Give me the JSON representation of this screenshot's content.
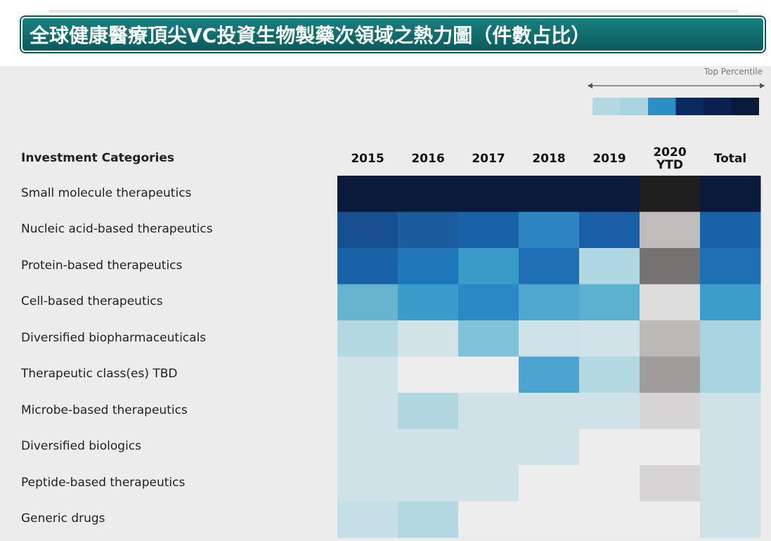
{
  "title": "全球健康醫療頂尖VC投資生物製藥次領域之熱力圖（件數占比）",
  "chart_data": {
    "type": "heatmap",
    "legend_label": "Top Percentile",
    "legend_colors": [
      "#b4d8e2",
      "#a8d4e0",
      "#2a8fc6",
      "#0b2a5e",
      "#0a2050",
      "#0a1a3a"
    ],
    "row_header": "Investment Categories",
    "columns": [
      "2015",
      "2016",
      "2017",
      "2018",
      "2019",
      "2020 YTD",
      "Total"
    ],
    "categories": [
      "Small molecule therapeutics",
      "Nucleic acid-based therapeutics",
      "Protein-based therapeutics",
      "Cell-based therapeutics",
      "Diversified biopharmaceuticals",
      "Therapeutic class(es) TBD",
      "Microbe-based therapeutics",
      "Diversified biologics",
      "Peptide-based therapeutics",
      "Generic drugs"
    ],
    "colors": [
      [
        "#0a1a3a",
        "#0a1a3a",
        "#0a1a3a",
        "#0a1a3a",
        "#0a1a3a",
        "#1e1e1e",
        "#0a1a3a"
      ],
      [
        "#154f8f",
        "#1a5c9e",
        "#1a62a8",
        "#2a85c0",
        "#1a5ea6",
        "#c0bcbc",
        "#1a62a8"
      ],
      [
        "#1a62a8",
        "#1f76b8",
        "#3a9bc8",
        "#1f6fb5",
        "#b0d8e2",
        "#767272",
        "#1f6fb5"
      ],
      [
        "#66b4d0",
        "#3b9ccb",
        "#2a88c4",
        "#4fa8cf",
        "#5cb0d0",
        "#dcdcdc",
        "#3c9dca"
      ],
      [
        "#b4d8e2",
        "#d2e4e8",
        "#80c2d8",
        "#cde2e8",
        "#d0e3e8",
        "#bcb8b8",
        "#a8d4e0"
      ],
      [
        "#cfe2e8",
        "#ededed",
        "#ededed",
        "#4aa4cf",
        "#b4d8e2",
        "#a09c9c",
        "#a8d4e0"
      ],
      [
        "#cfe2e8",
        "#b0d6e0",
        "#cfe2e8",
        "#cfe2e8",
        "#cfe2e8",
        "#d6d4d4",
        "#cfe2e8"
      ],
      [
        "#cfe2e8",
        "#cfe2e8",
        "#cfe2e8",
        "#cfe2e8",
        "#ededed",
        "#ededed",
        "#cfe2e8"
      ],
      [
        "#cfe2e8",
        "#cfe2e8",
        "#cfe2e8",
        "#ededed",
        "#ededed",
        "#d6d4d4",
        "#cfe2e8"
      ],
      [
        "#c4dfe6",
        "#b4d8e2",
        "#ededed",
        "#ededed",
        "#ededed",
        "#ededed",
        "#cfe2e8"
      ]
    ]
  }
}
